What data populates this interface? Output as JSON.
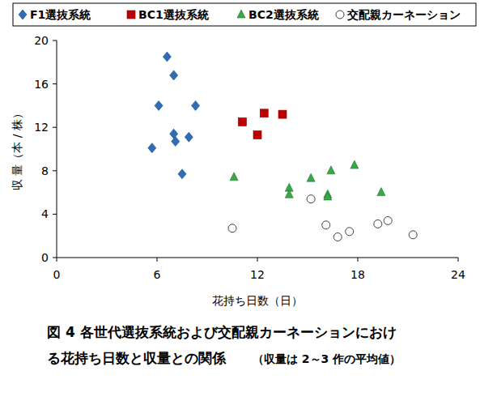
{
  "chart_data": {
    "type": "scatter",
    "title": [
      "図 4  各世代選抜系統および交配親カーネーションにおけ",
      "る花持ち日数と収量との関係"
    ],
    "note": "（収量は 2～3 作の平均値）",
    "x_label": "花持ち日数（日）",
    "y_label": "収 量（本 / 株）",
    "xlim": [
      0,
      24
    ],
    "xticks": [
      0,
      6,
      12,
      18,
      24
    ],
    "ylim": [
      0,
      20
    ],
    "yticks": [
      0,
      4,
      8,
      12,
      16,
      20
    ],
    "grid": false,
    "legend": "top",
    "series": [
      {
        "name": "F1選抜系統",
        "color": "#2f6db5",
        "marker": "diamond",
        "x": [
          6.6,
          7.0,
          6.1,
          8.3,
          7.0,
          7.1,
          7.9,
          5.7,
          7.5
        ],
        "values": [
          18.5,
          16.8,
          14.0,
          14.0,
          11.4,
          10.7,
          11.1,
          10.1,
          7.7
        ]
      },
      {
        "name": "BC1選抜系統",
        "color": "#c00000",
        "marker": "square",
        "x": [
          11.1,
          12.4,
          12.0,
          13.5
        ],
        "values": [
          12.5,
          13.3,
          11.3,
          13.2
        ]
      },
      {
        "name": "BC2選抜系統",
        "color": "#3aa845",
        "marker": "triangle",
        "x": [
          10.6,
          13.9,
          13.9,
          15.2,
          16.4,
          16.2,
          16.2,
          17.8,
          19.4
        ],
        "values": [
          7.4,
          6.4,
          5.8,
          7.3,
          8.0,
          5.8,
          5.6,
          8.5,
          6.0
        ]
      },
      {
        "name": "交配親カーネーション",
        "color": "#404040",
        "marker": "circle",
        "x": [
          10.5,
          15.2,
          16.1,
          16.8,
          17.5,
          19.2,
          19.8,
          21.3
        ],
        "values": [
          2.7,
          5.4,
          3.0,
          1.9,
          2.4,
          3.1,
          3.4,
          2.1
        ]
      }
    ]
  }
}
